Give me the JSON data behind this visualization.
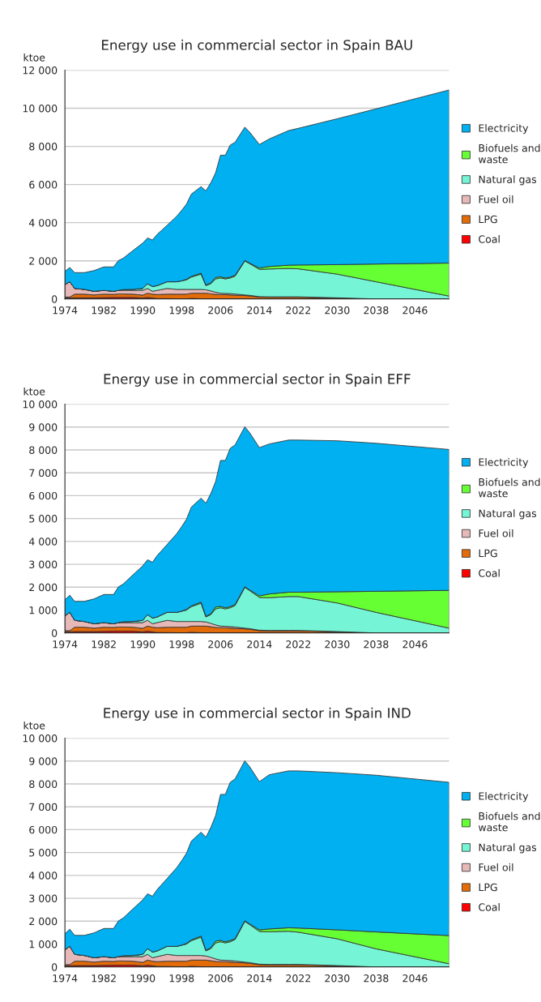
{
  "chart_data": [
    {
      "type": "area",
      "stacked": true,
      "title": "Energy use in commercial sector in Spain BAU",
      "ylabel": "ktoe",
      "grid": "y",
      "legend": "right",
      "x": [
        1974,
        1975,
        1976,
        1978,
        1980,
        1982,
        1984,
        1985,
        1986,
        1988,
        1990,
        1991,
        1992,
        1993,
        1995,
        1997,
        1998,
        1999,
        2000,
        2002,
        2003,
        2004,
        2005,
        2006,
        2007,
        2008,
        2009,
        2011,
        2012,
        2014,
        2016,
        2020,
        2022,
        2030,
        2038,
        2053
      ],
      "xlim": [
        1974,
        2053
      ],
      "xticks": [
        1974,
        1982,
        1990,
        1998,
        2006,
        2014,
        2022,
        2030,
        2038,
        2046
      ],
      "ylim": [
        0,
        12000
      ],
      "yticks": [
        {
          "value": 0,
          "label": "0"
        },
        {
          "value": 2000,
          "label": "2 000"
        },
        {
          "value": 4000,
          "label": "4 000"
        },
        {
          "value": 6000,
          "label": "6 000"
        },
        {
          "value": 8000,
          "label": "8 000"
        },
        {
          "value": 10000,
          "label": "10 000"
        },
        {
          "value": 12000,
          "label": "12 000"
        }
      ],
      "series": [
        {
          "name": "Coal",
          "color": "#ff0000",
          "values": [
            50,
            50,
            60,
            60,
            60,
            70,
            80,
            80,
            80,
            80,
            50,
            80,
            50,
            20,
            20,
            10,
            10,
            10,
            30,
            10,
            10,
            10,
            10,
            10,
            10,
            10,
            10,
            10,
            10,
            10,
            10,
            10,
            10,
            0,
            0,
            0
          ]
        },
        {
          "name": "LPG",
          "color": "#e36c09",
          "values": [
            50,
            50,
            190,
            190,
            150,
            180,
            160,
            180,
            180,
            170,
            150,
            220,
            200,
            210,
            230,
            240,
            240,
            240,
            270,
            290,
            290,
            260,
            230,
            220,
            220,
            200,
            190,
            170,
            150,
            90,
            80,
            80,
            80,
            50,
            0,
            0
          ]
        },
        {
          "name": "Fuel oil",
          "color": "#e6b9b8",
          "values": [
            650,
            800,
            300,
            250,
            190,
            200,
            160,
            190,
            190,
            200,
            250,
            250,
            150,
            220,
            300,
            250,
            250,
            250,
            200,
            200,
            180,
            150,
            110,
            70,
            60,
            70,
            60,
            30,
            30,
            20,
            20,
            20,
            20,
            10,
            0,
            0
          ]
        },
        {
          "name": "Natural gas",
          "color": "#76f5d6",
          "values": [
            0,
            0,
            0,
            0,
            0,
            0,
            0,
            0,
            40,
            50,
            100,
            250,
            250,
            250,
            350,
            400,
            450,
            500,
            650,
            800,
            220,
            380,
            700,
            800,
            760,
            820,
            940,
            1780,
            1660,
            1430,
            1460,
            1490,
            1470,
            1240,
            900,
            150
          ]
        },
        {
          "name": "Biofuels and\nwaste",
          "color": "#66ff33",
          "values": [
            0,
            0,
            0,
            0,
            0,
            0,
            0,
            0,
            0,
            0,
            0,
            0,
            0,
            0,
            0,
            0,
            0,
            30,
            30,
            50,
            30,
            40,
            80,
            60,
            50,
            50,
            40,
            30,
            30,
            70,
            130,
            170,
            200,
            500,
            930,
            1730
          ]
        },
        {
          "name": "Electricity",
          "color": "#00b0f0",
          "values": [
            700,
            750,
            830,
            880,
            1090,
            1230,
            1280,
            1560,
            1650,
            2040,
            2380,
            2400,
            2440,
            2690,
            2960,
            3440,
            3690,
            3940,
            4320,
            4540,
            4940,
            5250,
            5490,
            6380,
            6440,
            6920,
            6980,
            6990,
            6870,
            6480,
            6690,
            7060,
            7170,
            7650,
            8140,
            9080
          ]
        }
      ]
    },
    {
      "type": "area",
      "stacked": true,
      "title": "Energy use in commercial sector in Spain EFF",
      "ylabel": "ktoe",
      "grid": "y",
      "legend": "right",
      "x": [
        1974,
        1975,
        1976,
        1978,
        1980,
        1982,
        1984,
        1985,
        1986,
        1988,
        1990,
        1991,
        1992,
        1993,
        1995,
        1997,
        1998,
        1999,
        2000,
        2002,
        2003,
        2004,
        2005,
        2006,
        2007,
        2008,
        2009,
        2011,
        2012,
        2014,
        2016,
        2020,
        2022,
        2030,
        2038,
        2053
      ],
      "xlim": [
        1974,
        2053
      ],
      "xticks": [
        1974,
        1982,
        1990,
        1998,
        2006,
        2014,
        2022,
        2030,
        2038,
        2046
      ],
      "ylim": [
        0,
        10000
      ],
      "yticks": [
        {
          "value": 0,
          "label": "0"
        },
        {
          "value": 1000,
          "label": "1 000"
        },
        {
          "value": 2000,
          "label": "2 000"
        },
        {
          "value": 3000,
          "label": "3 000"
        },
        {
          "value": 4000,
          "label": "4 000"
        },
        {
          "value": 5000,
          "label": "5 000"
        },
        {
          "value": 6000,
          "label": "6 000"
        },
        {
          "value": 7000,
          "label": "7 000"
        },
        {
          "value": 8000,
          "label": "8 000"
        },
        {
          "value": 9000,
          "label": "9 000"
        },
        {
          "value": 10000,
          "label": "10 000"
        }
      ],
      "series": [
        {
          "name": "Coal",
          "color": "#ff0000",
          "values": [
            50,
            50,
            60,
            60,
            60,
            70,
            80,
            80,
            80,
            80,
            50,
            80,
            50,
            20,
            20,
            10,
            10,
            10,
            30,
            10,
            10,
            10,
            10,
            10,
            10,
            10,
            10,
            10,
            10,
            10,
            10,
            10,
            10,
            0,
            0,
            0
          ]
        },
        {
          "name": "LPG",
          "color": "#e36c09",
          "values": [
            50,
            50,
            190,
            190,
            150,
            180,
            160,
            180,
            180,
            170,
            150,
            220,
            200,
            210,
            230,
            240,
            240,
            240,
            270,
            290,
            290,
            260,
            230,
            220,
            220,
            200,
            190,
            170,
            150,
            90,
            80,
            80,
            80,
            50,
            0,
            0
          ]
        },
        {
          "name": "Fuel oil",
          "color": "#e6b9b8",
          "values": [
            650,
            800,
            300,
            250,
            190,
            200,
            160,
            190,
            190,
            200,
            250,
            250,
            150,
            220,
            300,
            250,
            250,
            250,
            200,
            200,
            180,
            150,
            110,
            70,
            60,
            70,
            60,
            30,
            30,
            20,
            20,
            20,
            20,
            10,
            0,
            0
          ]
        },
        {
          "name": "Natural gas",
          "color": "#76f5d6",
          "values": [
            0,
            0,
            0,
            0,
            0,
            0,
            0,
            0,
            40,
            50,
            100,
            250,
            250,
            250,
            350,
            400,
            450,
            500,
            650,
            800,
            220,
            380,
            700,
            800,
            760,
            820,
            940,
            1780,
            1660,
            1430,
            1430,
            1480,
            1480,
            1250,
            900,
            210
          ]
        },
        {
          "name": "Biofuels and\nwaste",
          "color": "#66ff33",
          "values": [
            0,
            0,
            0,
            0,
            0,
            0,
            0,
            0,
            0,
            0,
            0,
            0,
            0,
            0,
            0,
            0,
            0,
            30,
            30,
            50,
            30,
            40,
            80,
            60,
            50,
            50,
            40,
            30,
            30,
            70,
            160,
            190,
            190,
            490,
            920,
            1650
          ]
        },
        {
          "name": "Electricity",
          "color": "#00b0f0",
          "values": [
            700,
            750,
            830,
            880,
            1090,
            1230,
            1280,
            1560,
            1650,
            2040,
            2380,
            2400,
            2440,
            2690,
            2960,
            3440,
            3690,
            3940,
            4320,
            4540,
            4940,
            5250,
            5490,
            6380,
            6440,
            6920,
            6980,
            6990,
            6870,
            6480,
            6560,
            6650,
            6650,
            6600,
            6470,
            6160
          ]
        }
      ]
    },
    {
      "type": "area",
      "stacked": true,
      "title": "Energy use in commercial sector in Spain IND",
      "ylabel": "ktoe",
      "grid": "y",
      "legend": "right",
      "x": [
        1974,
        1975,
        1976,
        1978,
        1980,
        1982,
        1984,
        1985,
        1986,
        1988,
        1990,
        1991,
        1992,
        1993,
        1995,
        1997,
        1998,
        1999,
        2000,
        2002,
        2003,
        2004,
        2005,
        2006,
        2007,
        2008,
        2009,
        2011,
        2012,
        2014,
        2016,
        2020,
        2022,
        2030,
        2038,
        2053
      ],
      "xlim": [
        1974,
        2053
      ],
      "xticks": [
        1974,
        1982,
        1990,
        1998,
        2006,
        2014,
        2022,
        2030,
        2038,
        2046
      ],
      "ylim": [
        0,
        10000
      ],
      "yticks": [
        {
          "value": 0,
          "label": "0"
        },
        {
          "value": 1000,
          "label": "1 000"
        },
        {
          "value": 2000,
          "label": "2 000"
        },
        {
          "value": 3000,
          "label": "3 000"
        },
        {
          "value": 4000,
          "label": "4 000"
        },
        {
          "value": 5000,
          "label": "5 000"
        },
        {
          "value": 6000,
          "label": "6 000"
        },
        {
          "value": 7000,
          "label": "7 000"
        },
        {
          "value": 8000,
          "label": "8 000"
        },
        {
          "value": 9000,
          "label": "9 000"
        },
        {
          "value": 10000,
          "label": "10 000"
        }
      ],
      "series": [
        {
          "name": "Coal",
          "color": "#ff0000",
          "values": [
            50,
            50,
            60,
            60,
            60,
            70,
            80,
            80,
            80,
            80,
            50,
            80,
            50,
            20,
            20,
            10,
            10,
            10,
            30,
            10,
            10,
            10,
            10,
            10,
            10,
            10,
            10,
            10,
            10,
            10,
            10,
            10,
            10,
            0,
            0,
            0
          ]
        },
        {
          "name": "LPG",
          "color": "#e36c09",
          "values": [
            50,
            50,
            190,
            190,
            150,
            180,
            160,
            180,
            180,
            170,
            150,
            220,
            200,
            210,
            230,
            240,
            240,
            240,
            270,
            290,
            290,
            260,
            230,
            220,
            220,
            200,
            190,
            170,
            150,
            90,
            80,
            80,
            80,
            50,
            0,
            0
          ]
        },
        {
          "name": "Fuel oil",
          "color": "#e6b9b8",
          "values": [
            650,
            800,
            300,
            250,
            190,
            200,
            160,
            190,
            190,
            200,
            250,
            250,
            150,
            220,
            300,
            250,
            250,
            250,
            200,
            200,
            180,
            150,
            110,
            70,
            60,
            70,
            60,
            30,
            30,
            20,
            20,
            20,
            20,
            10,
            0,
            0
          ]
        },
        {
          "name": "Natural gas",
          "color": "#76f5d6",
          "values": [
            0,
            0,
            0,
            0,
            0,
            0,
            0,
            0,
            40,
            50,
            100,
            250,
            250,
            250,
            350,
            400,
            450,
            500,
            650,
            800,
            220,
            380,
            700,
            800,
            760,
            820,
            940,
            1780,
            1660,
            1430,
            1430,
            1450,
            1410,
            1170,
            790,
            140
          ]
        },
        {
          "name": "Biofuels and\nwaste",
          "color": "#66ff33",
          "values": [
            0,
            0,
            0,
            0,
            0,
            0,
            0,
            0,
            0,
            0,
            0,
            0,
            0,
            0,
            0,
            0,
            0,
            30,
            30,
            50,
            30,
            40,
            80,
            60,
            50,
            50,
            40,
            30,
            30,
            70,
            120,
            150,
            180,
            390,
            740,
            1230
          ]
        },
        {
          "name": "Electricity",
          "color": "#00b0f0",
          "values": [
            700,
            750,
            830,
            880,
            1090,
            1230,
            1280,
            1560,
            1650,
            2040,
            2380,
            2400,
            2440,
            2690,
            2960,
            3440,
            3690,
            3940,
            4320,
            4540,
            4940,
            5250,
            5490,
            6380,
            6440,
            6920,
            6980,
            6990,
            6870,
            6480,
            6740,
            6860,
            6870,
            6870,
            6850,
            6700
          ]
        }
      ]
    }
  ]
}
